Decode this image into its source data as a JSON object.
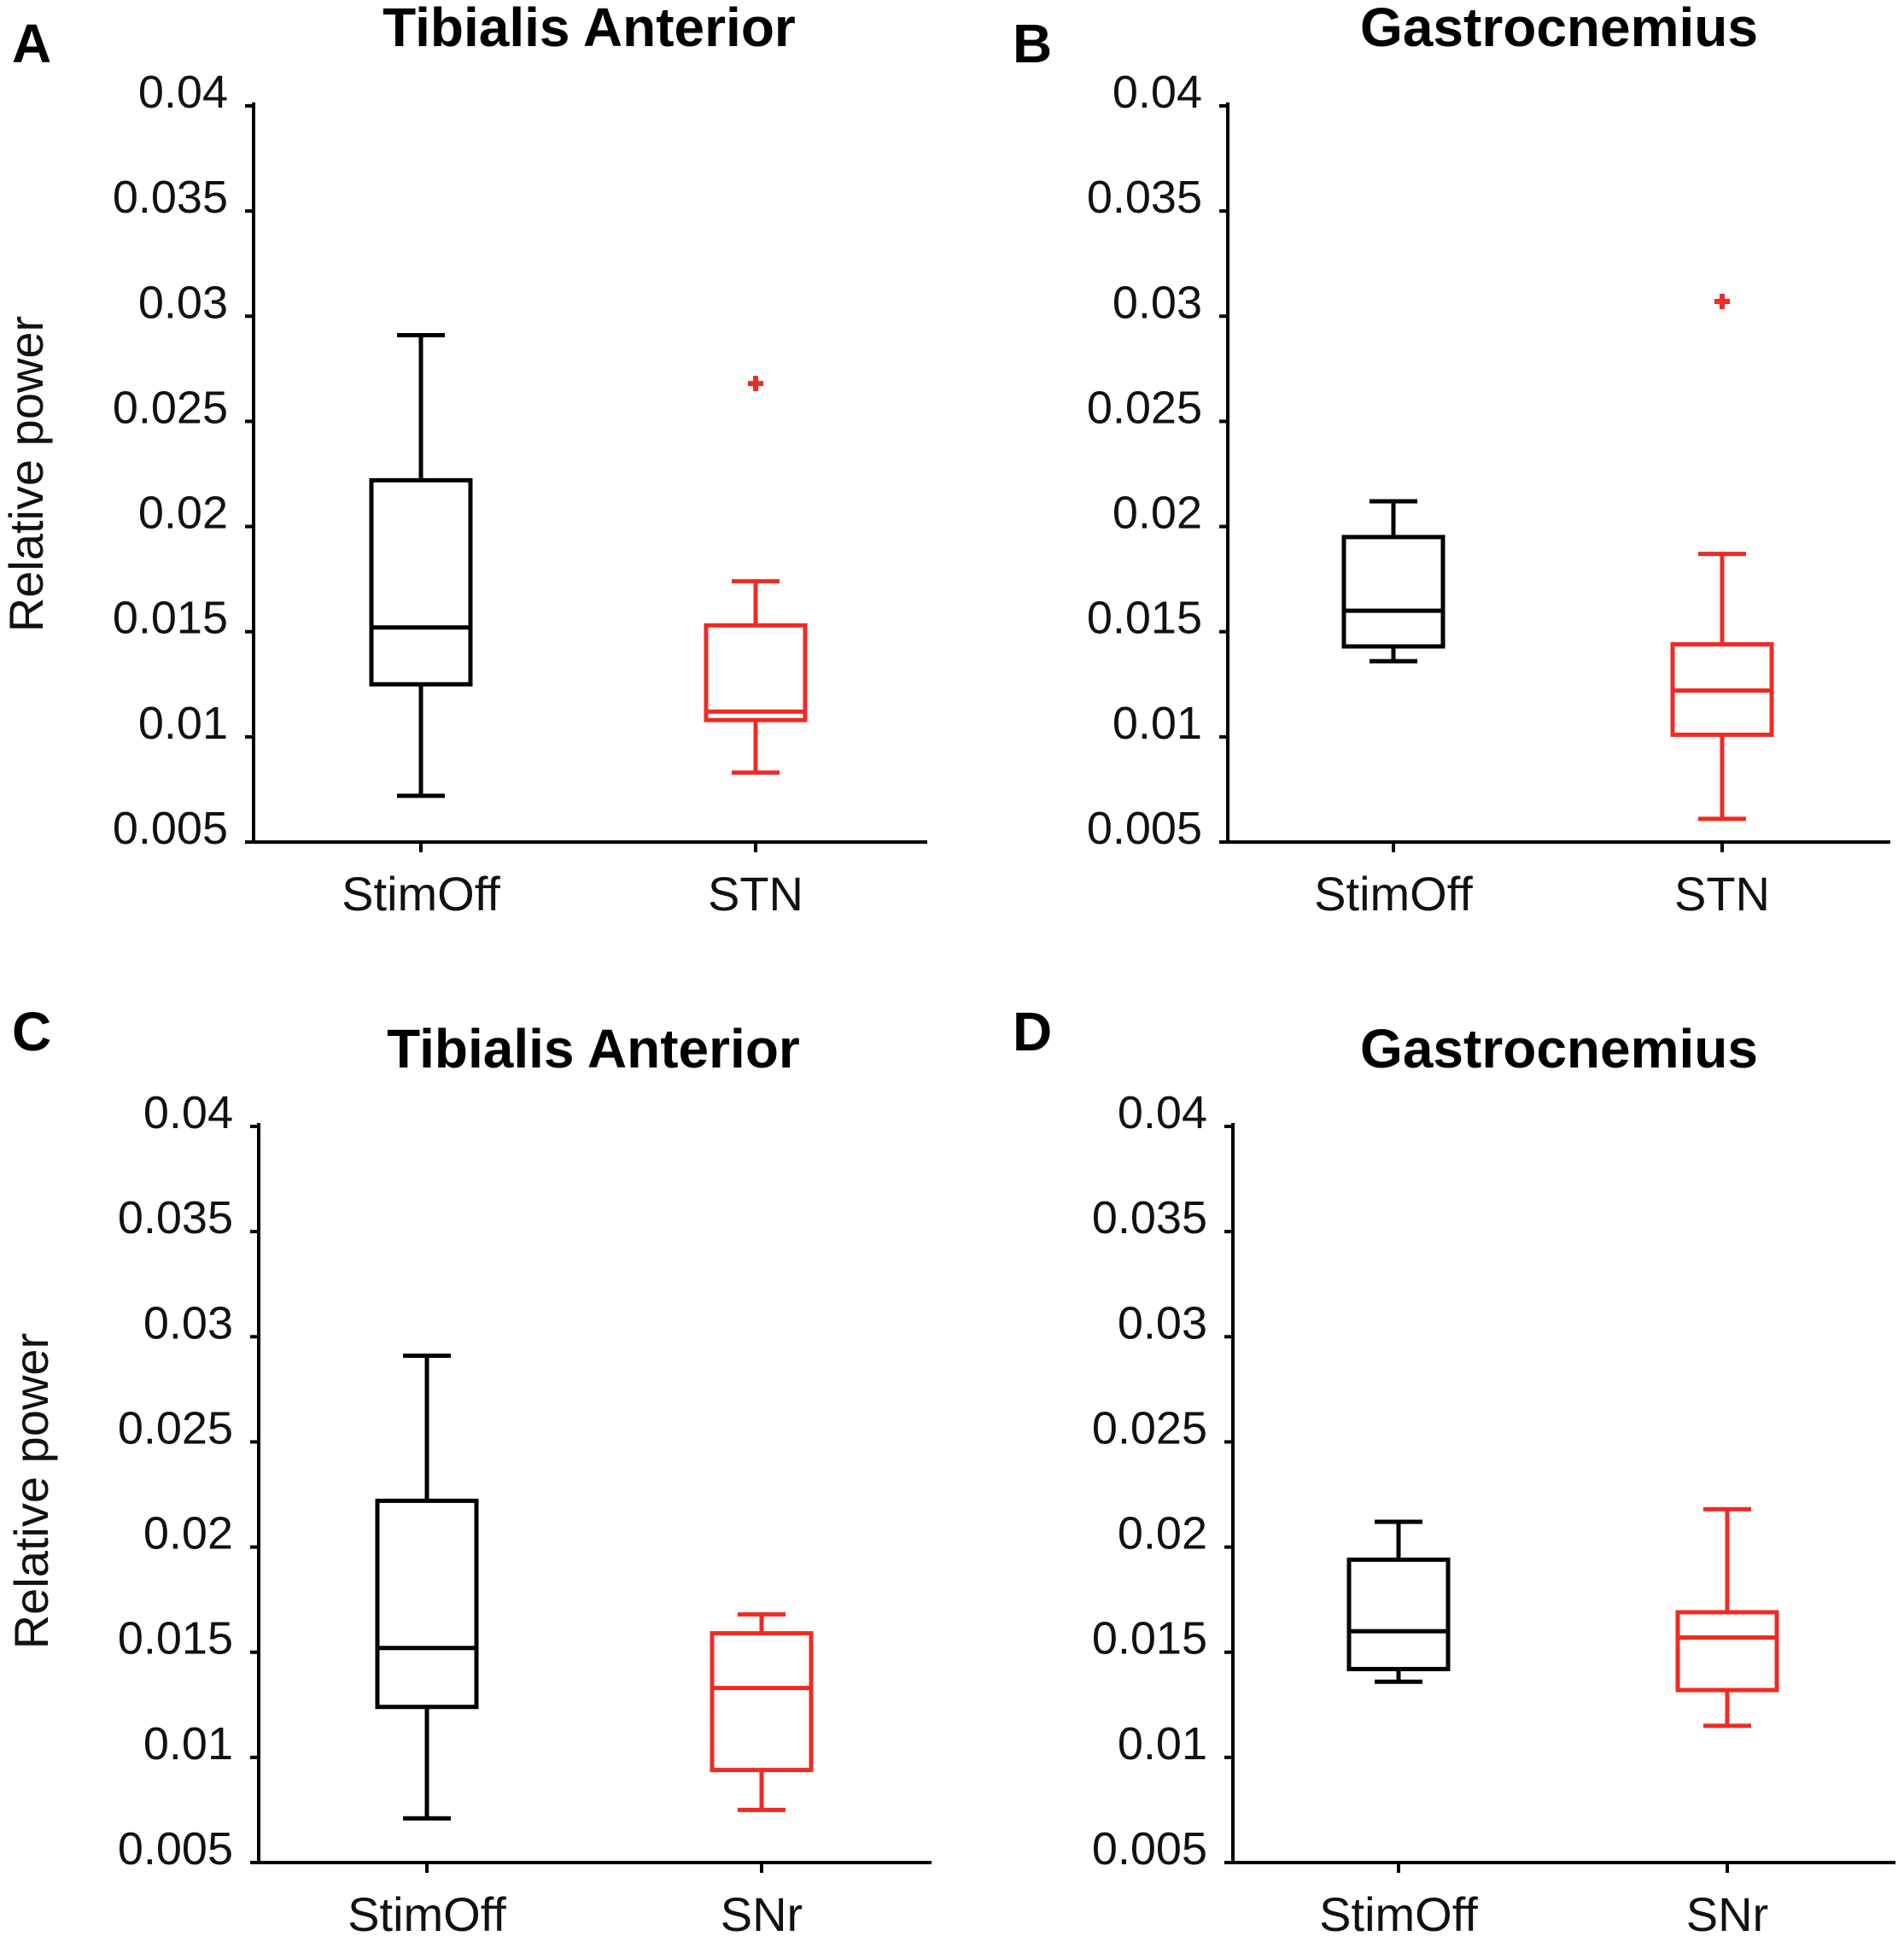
{
  "chart_data": [
    {
      "type": "box",
      "panel": "A",
      "title": "Tibialis Anterior",
      "xlabel": "",
      "ylabel": "Relative power",
      "ylim": [
        0.005,
        0.04
      ],
      "yticks": [
        "0.005",
        "0.01",
        "0.015",
        "0.02",
        "0.025",
        "0.03",
        "0.035",
        "0.04"
      ],
      "categories": [
        "StimOff",
        "STN"
      ],
      "boxes": [
        {
          "name": "StimOff",
          "color": "#000000",
          "whisker_low": 0.0072,
          "q1": 0.0125,
          "median": 0.0152,
          "q3": 0.0222,
          "whisker_high": 0.0291,
          "outliers": []
        },
        {
          "name": "STN",
          "color": "#ee2b24",
          "whisker_low": 0.0083,
          "q1": 0.0108,
          "median": 0.0112,
          "q3": 0.0153,
          "whisker_high": 0.0174,
          "outliers": [
            0.0268
          ]
        }
      ]
    },
    {
      "type": "box",
      "panel": "B",
      "title": "Gastrocnemius",
      "xlabel": "",
      "ylabel": "",
      "ylim": [
        0.005,
        0.04
      ],
      "yticks": [
        "0.005",
        "0.01",
        "0.015",
        "0.02",
        "0.025",
        "0.03",
        "0.035",
        "0.04"
      ],
      "categories": [
        "StimOff",
        "STN"
      ],
      "boxes": [
        {
          "name": "StimOff",
          "color": "#000000",
          "whisker_low": 0.0136,
          "q1": 0.0143,
          "median": 0.016,
          "q3": 0.0195,
          "whisker_high": 0.0212,
          "outliers": []
        },
        {
          "name": "STN",
          "color": "#ee2b24",
          "whisker_low": 0.0061,
          "q1": 0.0101,
          "median": 0.0122,
          "q3": 0.0144,
          "whisker_high": 0.0187,
          "outliers": [
            0.0307
          ]
        }
      ]
    },
    {
      "type": "box",
      "panel": "C",
      "title": "Tibialis Anterior",
      "xlabel": "",
      "ylabel": "Relative power",
      "ylim": [
        0.005,
        0.04
      ],
      "yticks": [
        "0.005",
        "0.01",
        "0.015",
        "0.02",
        "0.025",
        "0.03",
        "0.035",
        "0.04"
      ],
      "categories": [
        "StimOff",
        "SNr"
      ],
      "boxes": [
        {
          "name": "StimOff",
          "color": "#000000",
          "whisker_low": 0.0071,
          "q1": 0.0124,
          "median": 0.0152,
          "q3": 0.0222,
          "whisker_high": 0.0291,
          "outliers": []
        },
        {
          "name": "SNr",
          "color": "#ee2b24",
          "whisker_low": 0.0075,
          "q1": 0.0094,
          "median": 0.0133,
          "q3": 0.0159,
          "whisker_high": 0.0168,
          "outliers": []
        }
      ]
    },
    {
      "type": "box",
      "panel": "D",
      "title": "Gastrocnemius",
      "xlabel": "",
      "ylabel": "",
      "ylim": [
        0.005,
        0.04
      ],
      "yticks": [
        "0.005",
        "0.01",
        "0.015",
        "0.02",
        "0.025",
        "0.03",
        "0.035",
        "0.04"
      ],
      "categories": [
        "StimOff",
        "SNr"
      ],
      "boxes": [
        {
          "name": "StimOff",
          "color": "#000000",
          "whisker_low": 0.0136,
          "q1": 0.0142,
          "median": 0.016,
          "q3": 0.0194,
          "whisker_high": 0.0212,
          "outliers": []
        },
        {
          "name": "SNr",
          "color": "#ee2b24",
          "whisker_low": 0.0115,
          "q1": 0.0132,
          "median": 0.0157,
          "q3": 0.0169,
          "whisker_high": 0.0218,
          "outliers": []
        }
      ]
    }
  ]
}
